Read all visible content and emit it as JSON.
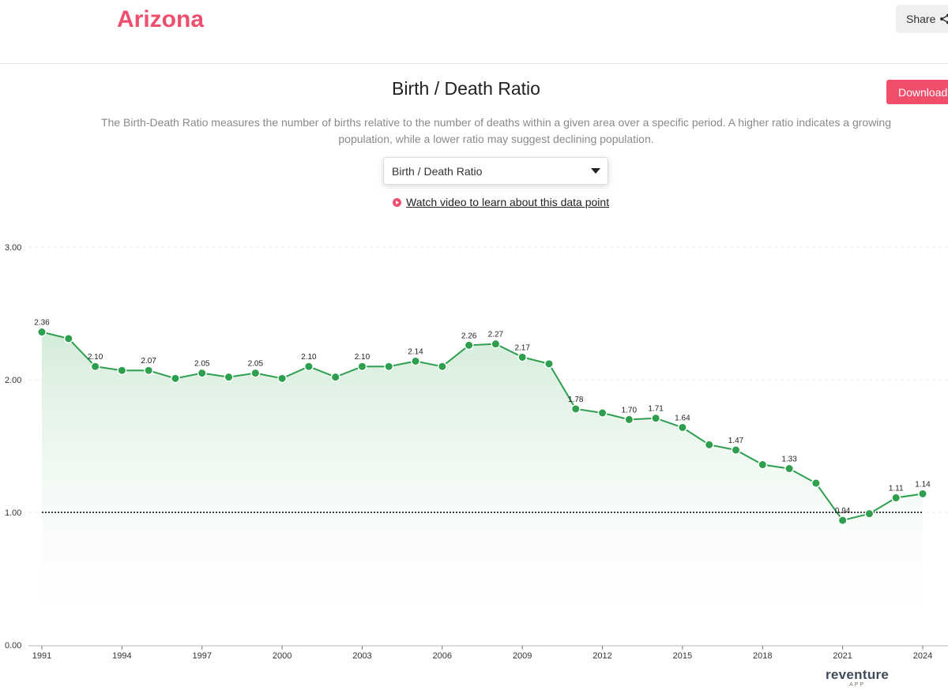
{
  "header": {
    "title": "Arizona",
    "share_label": "Share",
    "share_icon": "share-icon"
  },
  "toolbar": {
    "download_label": "Download"
  },
  "chart_title": "Birth / Death Ratio",
  "description": "The Birth-Death Ratio measures the number of births relative to the number of deaths within a given area over a specific period. A higher ratio indicates a growing population, while a lower ratio may suggest declining population.",
  "metric_select": {
    "selected": "Birth / Death Ratio"
  },
  "video_link": {
    "label": "Watch video to learn about this data point",
    "icon": "play-icon"
  },
  "brand": {
    "name": "reventure",
    "sub": "APP"
  },
  "colors": {
    "accent": "#ef4f6e",
    "line": "#2e9e4f",
    "area": "#d8efdd",
    "reference": "#000000"
  },
  "chart_data": {
    "type": "line",
    "title": "Birth / Death Ratio",
    "xlabel": "",
    "ylabel": "",
    "ylim": [
      0,
      3
    ],
    "yticks": [
      "0.00",
      "1.00",
      "2.00",
      "3.00"
    ],
    "xticks": [
      1991,
      1994,
      1997,
      2000,
      2003,
      2006,
      2009,
      2012,
      2015,
      2018,
      2021,
      2024
    ],
    "reference_line": 1.0,
    "x": [
      1991,
      1992,
      1993,
      1994,
      1995,
      1996,
      1997,
      1998,
      1999,
      2000,
      2001,
      2002,
      2003,
      2004,
      2005,
      2006,
      2007,
      2008,
      2009,
      2010,
      2011,
      2012,
      2013,
      2014,
      2015,
      2016,
      2017,
      2018,
      2019,
      2020,
      2021,
      2022,
      2023,
      2024
    ],
    "values": [
      2.36,
      2.31,
      2.1,
      2.07,
      2.07,
      2.01,
      2.05,
      2.02,
      2.05,
      2.01,
      2.1,
      2.02,
      2.1,
      2.1,
      2.14,
      2.1,
      2.26,
      2.27,
      2.17,
      2.12,
      1.78,
      1.75,
      1.7,
      1.71,
      1.64,
      1.51,
      1.47,
      1.36,
      1.33,
      1.22,
      0.94,
      0.99,
      1.11,
      1.14
    ],
    "data_labels": {
      "1991": "2.36",
      "1993": "2.10",
      "1995": "2.07",
      "1997": "2.05",
      "1999": "2.05",
      "2001": "2.10",
      "2003": "2.10",
      "2005": "2.14",
      "2007": "2.26",
      "2008": "2.27",
      "2009": "2.17",
      "2011": "1.78",
      "2013": "1.70",
      "2014": "1.71",
      "2015": "1.64",
      "2017": "1.47",
      "2019": "1.33",
      "2021": "0.94",
      "2023": "1.11",
      "2024": "1.14"
    },
    "grid": true
  }
}
